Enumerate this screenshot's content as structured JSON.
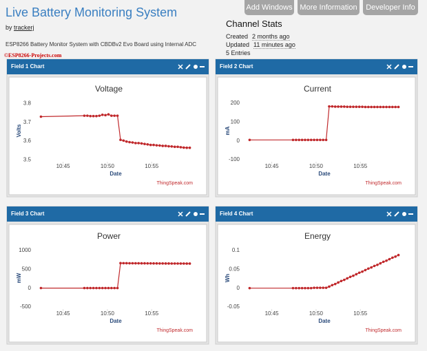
{
  "header": {
    "title": "Live Battery Monitoring System",
    "author_prefix": "by",
    "author": "trackerj",
    "description": "ESP8266 Battery Monitor System with CBDBv2 Evo Board using Internal ADC",
    "credit": "©ESP8266-Projects.com"
  },
  "buttons": [
    "Add Windows",
    "More Information",
    "Developer Info"
  ],
  "channel_stats": {
    "title": "Channel Stats",
    "created_label": "Created",
    "created": "2 months ago",
    "updated_label": "Updated",
    "updated": "11 minutes ago",
    "entries": "5 Entries"
  },
  "chart_data": [
    {
      "type": "line",
      "panel_title": "Field 1 Chart",
      "title": "Voltage",
      "xlabel": "Date",
      "ylabel": "Volts",
      "credit": "ThingSpeak.com",
      "x": [
        42.5,
        47.4,
        47.74,
        48.08,
        48.42,
        48.76,
        49.1,
        49.44,
        49.78,
        50.12,
        50.46,
        50.8,
        51.14,
        51.48,
        51.82,
        52.16,
        52.5,
        52.84,
        53.18,
        53.52,
        53.86,
        54.2,
        54.54,
        54.88,
        55.22,
        55.56,
        55.9,
        56.24,
        56.58,
        56.92,
        57.26,
        57.6,
        57.94,
        58.28,
        58.62,
        58.96,
        59.3
      ],
      "series": [
        {
          "color": "#c0282b",
          "values": [
            3.73,
            3.735,
            3.735,
            3.733,
            3.733,
            3.733,
            3.735,
            3.74,
            3.738,
            3.742,
            3.735,
            3.735,
            3.735,
            3.607,
            3.603,
            3.598,
            3.595,
            3.593,
            3.59,
            3.59,
            3.588,
            3.585,
            3.583,
            3.58,
            3.58,
            3.578,
            3.577,
            3.575,
            3.575,
            3.573,
            3.572,
            3.57,
            3.57,
            3.568,
            3.566,
            3.565,
            3.565
          ]
        }
      ],
      "xlim": [
        42,
        59.8
      ],
      "ylim": [
        3.48,
        3.845
      ],
      "xticks": [
        {
          "value": 45,
          "label": "10:45"
        },
        {
          "value": 50,
          "label": "10:50"
        },
        {
          "value": 55,
          "label": "10:55"
        }
      ],
      "yticks": [
        3.5,
        3.6,
        3.7,
        3.8
      ]
    },
    {
      "type": "line",
      "panel_title": "Field 2 Chart",
      "title": "Current",
      "xlabel": "Date",
      "ylabel": "mA",
      "credit": "ThingSpeak.com",
      "x": [
        42.5,
        47.4,
        47.74,
        48.08,
        48.42,
        48.76,
        49.1,
        49.44,
        49.78,
        50.12,
        50.46,
        50.8,
        51.14,
        51.48,
        51.82,
        52.16,
        52.5,
        52.84,
        53.18,
        53.52,
        53.86,
        54.2,
        54.54,
        54.88,
        55.22,
        55.56,
        55.9,
        56.24,
        56.58,
        56.92,
        57.26,
        57.6,
        57.94,
        58.28,
        58.62,
        58.96,
        59.3
      ],
      "series": [
        {
          "color": "#c0282b",
          "values": [
            5,
            5,
            5,
            5,
            5,
            5,
            5,
            5,
            5,
            5,
            5,
            5,
            5,
            183,
            183,
            182,
            182,
            182,
            182,
            181,
            181,
            181,
            181,
            181,
            181,
            180,
            180,
            180,
            180,
            180,
            180,
            180,
            180,
            180,
            180,
            180,
            180
          ]
        }
      ],
      "xlim": [
        42,
        59.8
      ],
      "ylim": [
        -122,
        244
      ],
      "xticks": [
        {
          "value": 45,
          "label": "10:45"
        },
        {
          "value": 50,
          "label": "10:50"
        },
        {
          "value": 55,
          "label": "10:55"
        }
      ],
      "yticks": [
        -100,
        0,
        100,
        200
      ]
    },
    {
      "type": "line",
      "panel_title": "Field 3 Chart",
      "title": "Power",
      "xlabel": "Date",
      "ylabel": "mW",
      "credit": "ThingSpeak.com",
      "x": [
        42.5,
        47.4,
        47.74,
        48.08,
        48.42,
        48.76,
        49.1,
        49.44,
        49.78,
        50.12,
        50.46,
        50.8,
        51.14,
        51.48,
        51.82,
        52.16,
        52.5,
        52.84,
        53.18,
        53.52,
        53.86,
        54.2,
        54.54,
        54.88,
        55.22,
        55.56,
        55.9,
        56.24,
        56.58,
        56.92,
        57.26,
        57.6,
        57.94,
        58.28,
        58.62,
        58.96,
        59.3
      ],
      "series": [
        {
          "color": "#c0282b",
          "values": [
            2,
            2,
            2,
            2,
            2,
            2,
            2,
            2,
            2,
            2,
            2,
            2,
            2,
            665,
            664,
            663,
            662,
            662,
            661,
            661,
            660,
            660,
            659,
            659,
            658,
            658,
            657,
            657,
            656,
            656,
            655,
            655,
            655,
            654,
            654,
            653,
            653
          ]
        }
      ],
      "xlim": [
        42,
        59.8
      ],
      "ylim": [
        -610,
        1220
      ],
      "xticks": [
        {
          "value": 45,
          "label": "10:45"
        },
        {
          "value": 50,
          "label": "10:50"
        },
        {
          "value": 55,
          "label": "10:55"
        }
      ],
      "yticks": [
        -500,
        0,
        500,
        1000
      ]
    },
    {
      "type": "line",
      "panel_title": "Field 4 Chart",
      "title": "Energy",
      "xlabel": "Date",
      "ylabel": "Wh",
      "credit": "ThingSpeak.com",
      "x": [
        42.5,
        47.4,
        47.74,
        48.08,
        48.42,
        48.76,
        49.1,
        49.44,
        49.78,
        50.12,
        50.46,
        50.8,
        51.14,
        51.48,
        51.82,
        52.16,
        52.5,
        52.84,
        53.18,
        53.52,
        53.86,
        54.2,
        54.54,
        54.88,
        55.22,
        55.56,
        55.9,
        56.24,
        56.58,
        56.92,
        57.26,
        57.6,
        57.94,
        58.28,
        58.62,
        58.96,
        59.3
      ],
      "series": [
        {
          "color": "#c0282b",
          "values": [
            0,
            0,
            0,
            0,
            0,
            0,
            0,
            0,
            0.001,
            0.001,
            0.001,
            0.001,
            0.001,
            0.004,
            0.008,
            0.011,
            0.015,
            0.019,
            0.022,
            0.026,
            0.03,
            0.033,
            0.037,
            0.041,
            0.044,
            0.048,
            0.052,
            0.055,
            0.059,
            0.062,
            0.066,
            0.07,
            0.073,
            0.077,
            0.081,
            0.084,
            0.088
          ]
        }
      ],
      "xlim": [
        42,
        59.8
      ],
      "ylim": [
        -0.061,
        0.122
      ],
      "xticks": [
        {
          "value": 45,
          "label": "10:45"
        },
        {
          "value": 50,
          "label": "10:50"
        },
        {
          "value": 55,
          "label": "10:55"
        }
      ],
      "yticks": [
        -0.05,
        0,
        0.05,
        0.1
      ]
    }
  ]
}
